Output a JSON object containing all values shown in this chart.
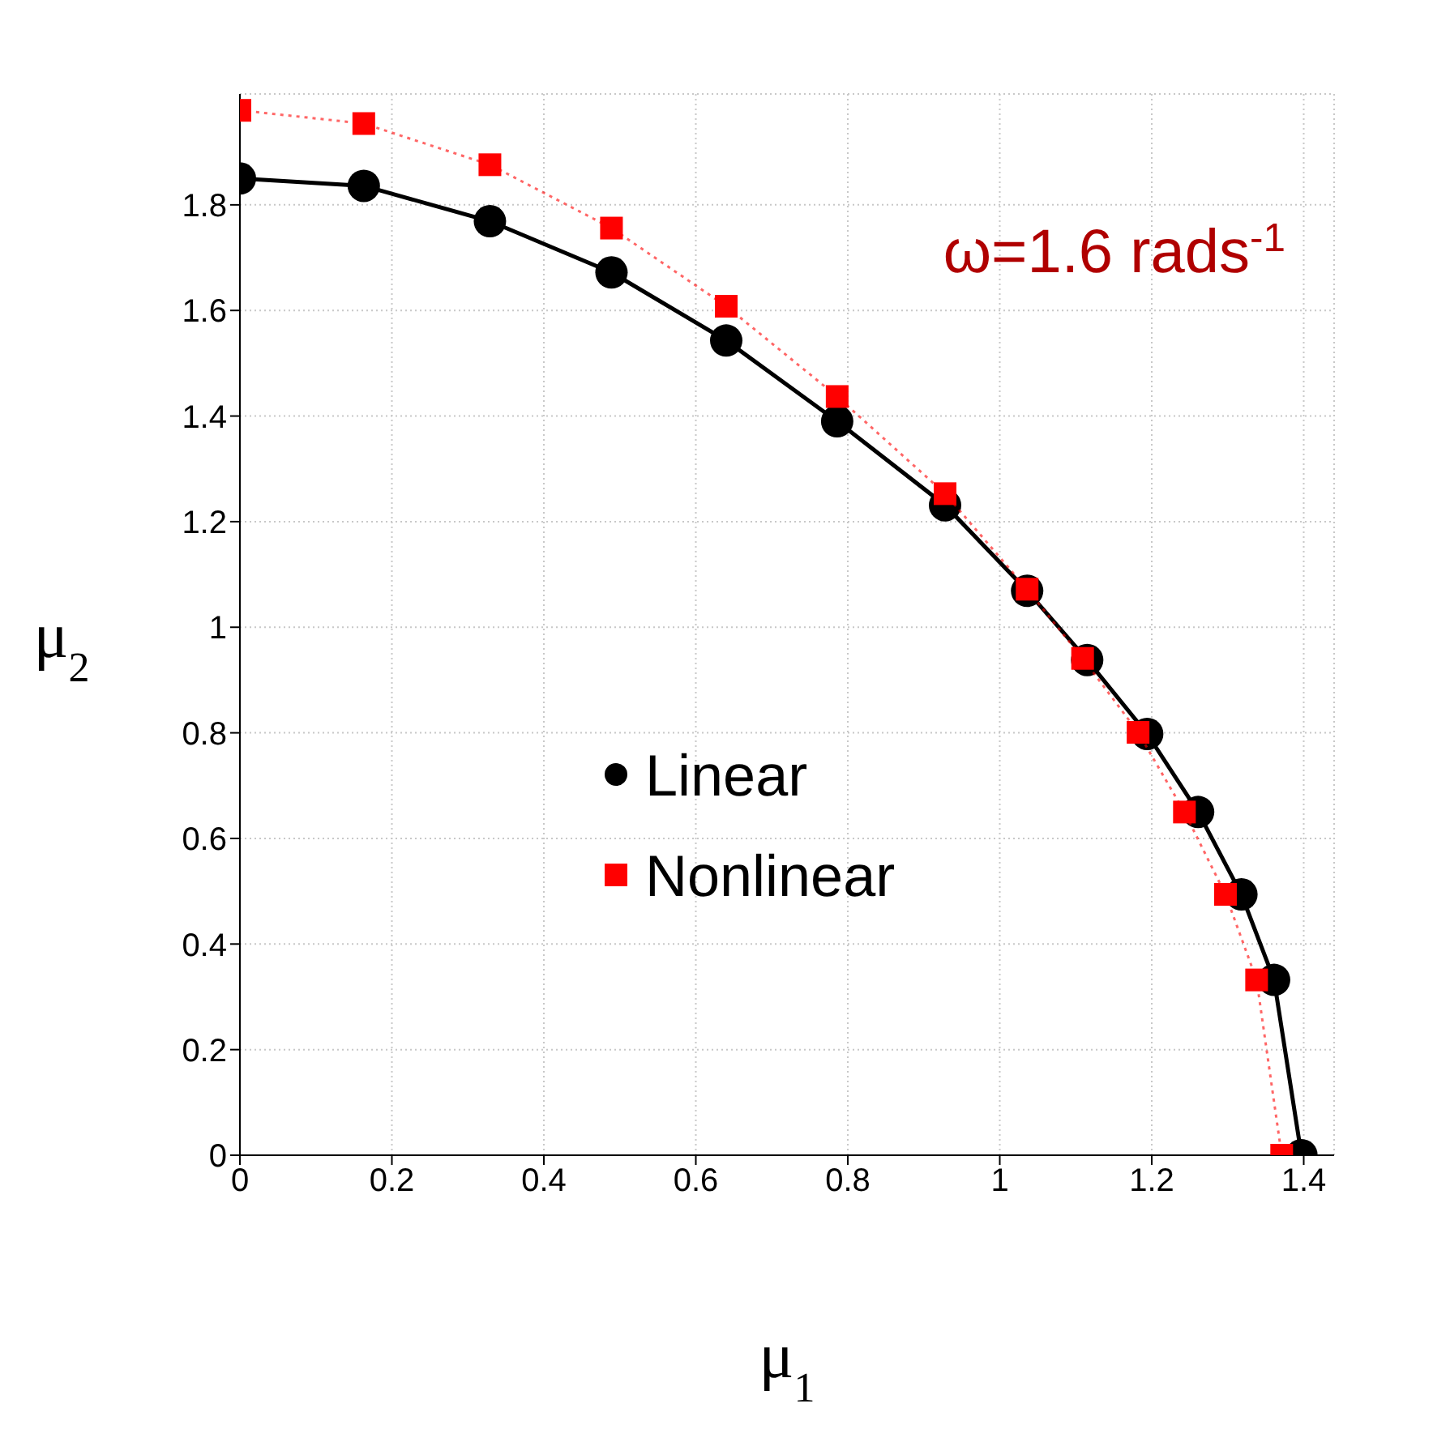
{
  "chart_data": {
    "type": "line",
    "xlabel": "μ$_{1}$",
    "ylabel": "μ$_{2}$",
    "annotations": [
      "ω=1.6 rads$^{-1}$"
    ],
    "xlim": [
      0,
      1.44
    ],
    "xticks": [
      0,
      0.2,
      0.4,
      0.6,
      0.8,
      1,
      1.2,
      1.4
    ],
    "ylim": [
      0,
      2.01
    ],
    "yticks": [
      0,
      0.2,
      0.4,
      0.6,
      0.8,
      1,
      1.2,
      1.4,
      1.6,
      1.8
    ],
    "grid": true,
    "legend": "center",
    "series": [
      {
        "name": "Linear",
        "color": "#000000",
        "marker": "circle",
        "line_style": "solid",
        "x": [
          0,
          0.163,
          0.329,
          0.489,
          0.64,
          0.786,
          0.928,
          1.036,
          1.115,
          1.194,
          1.261,
          1.318,
          1.361,
          1.397
        ],
        "values": [
          1.85,
          1.836,
          1.769,
          1.672,
          1.543,
          1.39,
          1.231,
          1.069,
          0.938,
          0.798,
          0.65,
          0.494,
          0.332,
          0
        ]
      },
      {
        "name": "Nonlinear",
        "color": "#ff0000",
        "marker": "square",
        "line_style": "dotted",
        "x": [
          0,
          0.163,
          0.329,
          0.489,
          0.64,
          0.786,
          0.928,
          1.036,
          1.109,
          1.182,
          1.243,
          1.297,
          1.338,
          1.371
        ],
        "values": [
          1.979,
          1.954,
          1.876,
          1.756,
          1.608,
          1.437,
          1.253,
          1.072,
          0.941,
          0.801,
          0.65,
          0.494,
          0.332,
          0
        ]
      }
    ]
  }
}
